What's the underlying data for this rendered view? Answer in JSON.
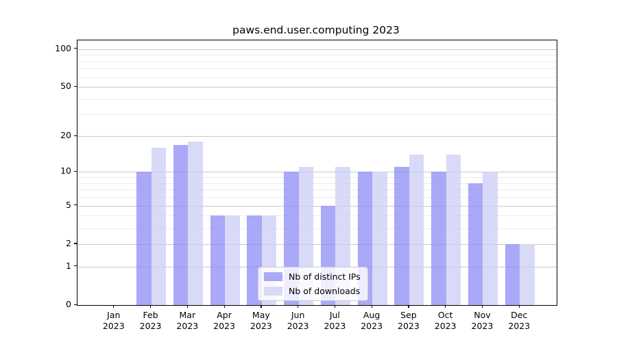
{
  "title": "paws.end.user.computing 2023",
  "chart_data": {
    "type": "bar",
    "title": "paws.end.user.computing 2023",
    "categories": [
      "Jan 2023",
      "Feb 2023",
      "Mar 2023",
      "Apr 2023",
      "May 2023",
      "Jun 2023",
      "Jul 2023",
      "Aug 2023",
      "Sep 2023",
      "Oct 2023",
      "Nov 2023",
      "Dec 2023"
    ],
    "series": [
      {
        "name": "Nb of distinct IPs",
        "color": "rgba(140,140,244,0.75)",
        "solid_color": "#a9a9f7",
        "values": [
          0,
          10,
          17,
          4,
          4,
          10,
          5,
          10,
          11,
          10,
          8,
          2
        ]
      },
      {
        "name": "Nb of downloads",
        "color": "rgba(204,204,246,0.75)",
        "solid_color": "#d9d9f8",
        "values": [
          0,
          16,
          18,
          4,
          4,
          11,
          11,
          10,
          14,
          14,
          10,
          2
        ]
      }
    ],
    "xlabel": "",
    "ylabel": "",
    "y_axis": {
      "scale": "log1p",
      "ticks": [
        0,
        1,
        2,
        5,
        10,
        20,
        50,
        100
      ],
      "minor_ticks": [
        3,
        4,
        6,
        7,
        8,
        9,
        30,
        40,
        60,
        70,
        80,
        90
      ],
      "ylim": [
        0,
        117
      ]
    },
    "grid": true,
    "legend_position": "lower center"
  },
  "colors": {
    "major_grid": "#c8c8c8",
    "minor_grid": "#ebebeb",
    "axis": "#000000",
    "text": "#000000",
    "legend_border": "#cccccc",
    "legend_bg": "rgba(255,255,255,0.8)"
  }
}
